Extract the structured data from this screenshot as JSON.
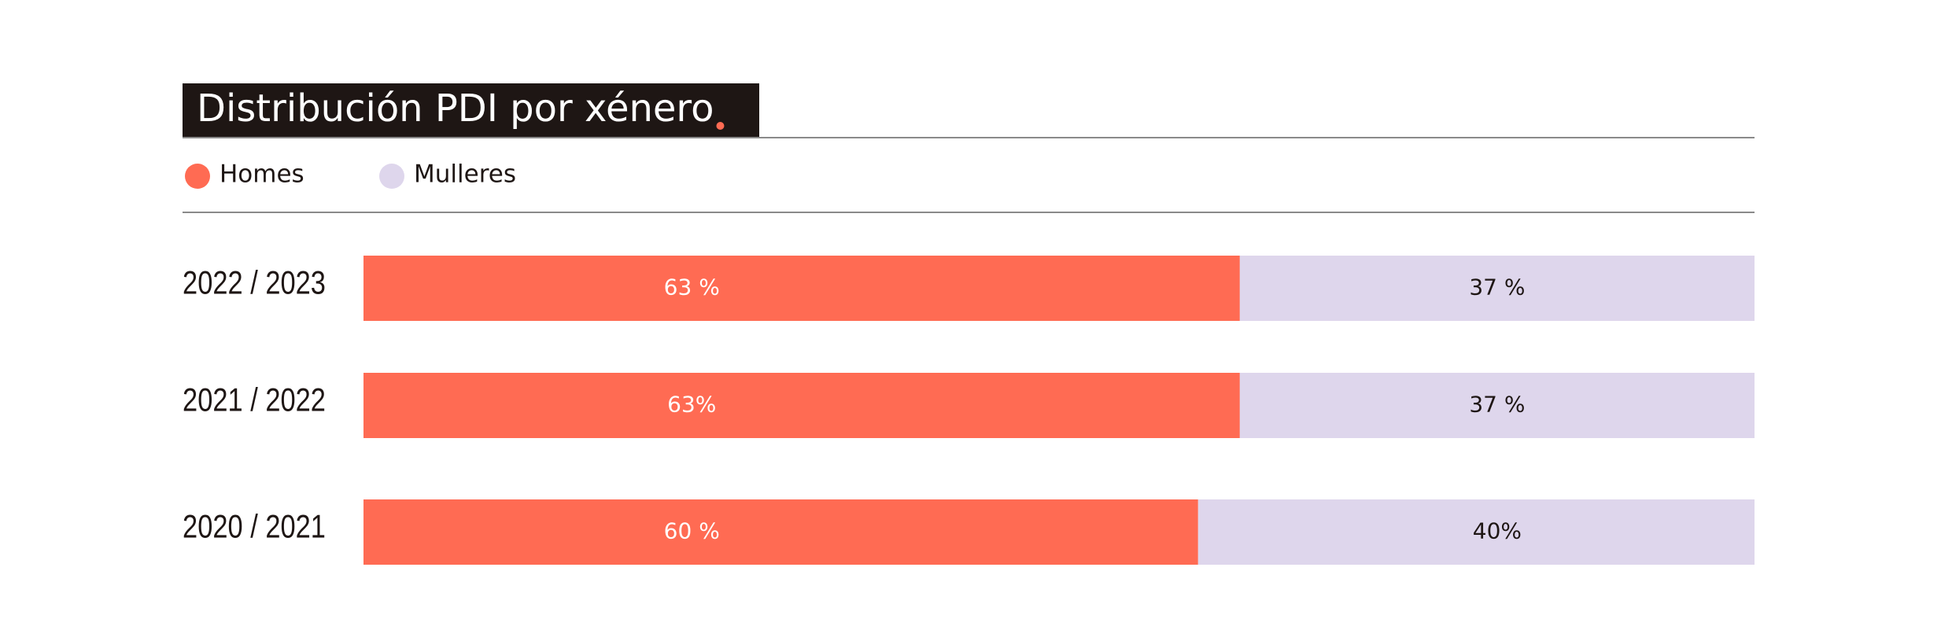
{
  "chart_data": {
    "type": "stacked-bar-horizontal",
    "title": "Distribución PDI por xénero",
    "categories": [
      "2022 / 2023",
      "2021 / 2022",
      "2020 / 2021"
    ],
    "series": [
      {
        "name": "Homes",
        "color": "#ff6b53",
        "values": [
          63,
          63,
          60
        ],
        "value_labels": [
          "63 %",
          "63%",
          "60 %"
        ],
        "label_color": "#ffffff"
      },
      {
        "name": "Mulleres",
        "color": "#ded6ec",
        "values": [
          37,
          37,
          40
        ],
        "value_labels": [
          "37 %",
          "37 %",
          "40%"
        ],
        "label_color": "#1e1614"
      }
    ]
  }
}
